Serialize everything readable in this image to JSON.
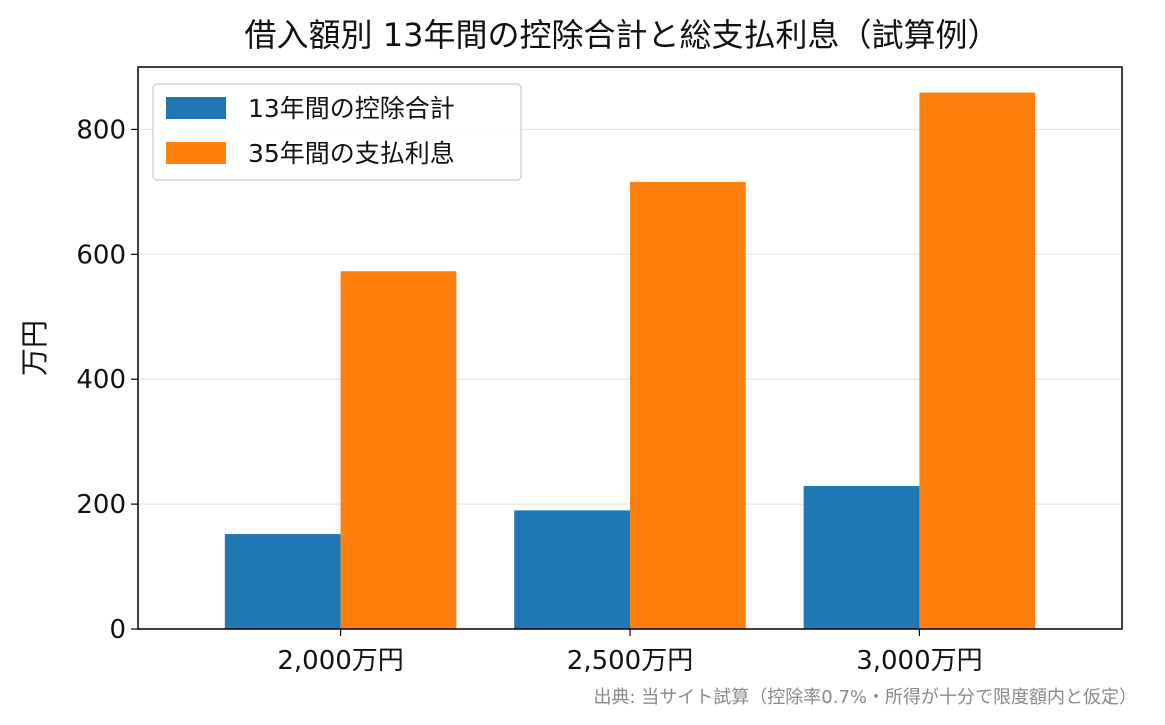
{
  "chart_data": {
    "type": "bar",
    "title": "借入額別 13年間の控除合計と総支払利息（試算例）",
    "xlabel": "",
    "ylabel": "万円",
    "categories": [
      "2,000万円",
      "2,500万円",
      "3,000万円"
    ],
    "series": [
      {
        "name": "13年間の控除合計",
        "values": [
          152,
          190,
          229
        ],
        "color": "#1f77b4"
      },
      {
        "name": "35年間の支払利息",
        "values": [
          573,
          716,
          859
        ],
        "color": "#ff7f0e"
      }
    ],
    "ylim": [
      0,
      900
    ],
    "yticks": [
      0,
      200,
      400,
      600,
      800
    ],
    "grid": "y",
    "legend": "top-left",
    "source": "出典: 当サイト試算（控除率0.7%・所得が十分で限度額内と仮定）"
  }
}
